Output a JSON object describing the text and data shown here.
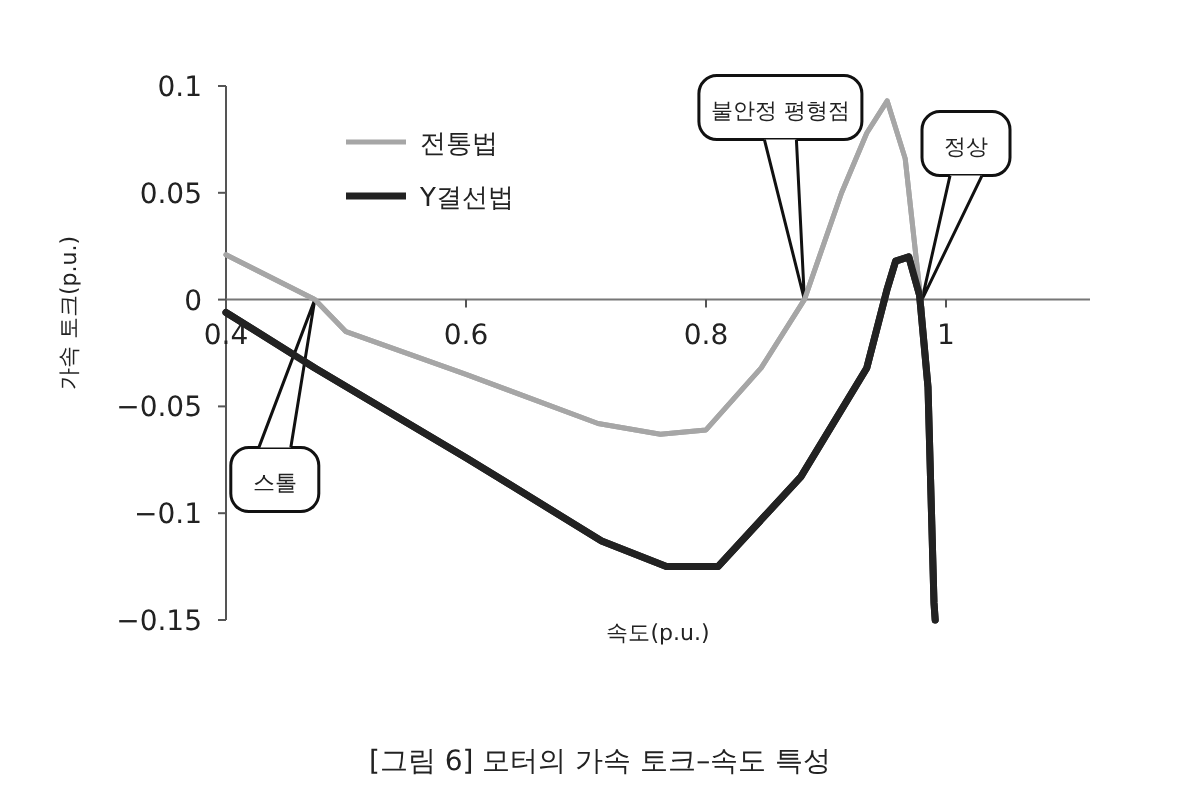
{
  "chart_data": {
    "type": "line",
    "title": "[그림 6] 모터의 가속 토크–속도 특성",
    "xlabel": "속도(p.u.)",
    "ylabel": "가속 토크(p.u.)",
    "xlim": [
      0.4,
      1.12
    ],
    "ylim": [
      -0.15,
      0.1
    ],
    "xticks": [
      0.4,
      0.6,
      0.8,
      1
    ],
    "yticks": [
      0.1,
      0.05,
      0,
      {
        "value": -0.05,
        "label": "−0.05"
      },
      {
        "value": -0.1,
        "label": "−0.1"
      },
      {
        "value": -0.15,
        "label": "−0.15"
      }
    ],
    "grid": false,
    "legend": "top left",
    "line_style": "solid",
    "series": [
      {
        "name": "전통법",
        "color": "#a6a6a6",
        "x": [
          0.4,
          0.474,
          0.5,
          0.6,
          0.71,
          0.762,
          0.8,
          0.846,
          0.882,
          0.913,
          0.934,
          0.951,
          0.966,
          0.975,
          0.98
        ],
        "values": [
          0.021,
          0,
          -0.015,
          -0.035,
          -0.058,
          -0.063,
          -0.061,
          -0.032,
          0,
          0.05,
          0.078,
          0.093,
          0.066,
          0.02,
          -0.005
        ]
      },
      {
        "name": "Y결선법",
        "color": "#222222",
        "x": [
          0.4,
          0.474,
          0.6,
          0.713,
          0.767,
          0.81,
          0.879,
          0.934,
          0.951,
          0.958,
          0.969,
          0.978,
          0.985,
          0.99,
          0.991
        ],
        "values": [
          -0.006,
          -0.032,
          -0.074,
          -0.113,
          -0.125,
          -0.125,
          -0.083,
          -0.032,
          0.005,
          0.018,
          0.02,
          0.002,
          -0.041,
          -0.142,
          -0.15
        ]
      }
    ],
    "annotations": [
      {
        "text": "스톨",
        "x": 0.474,
        "y": 0
      },
      {
        "text": "불안정 평형점",
        "x": 0.882,
        "y": 0
      },
      {
        "text": "정상",
        "x": 0.98,
        "y": 0
      }
    ]
  }
}
